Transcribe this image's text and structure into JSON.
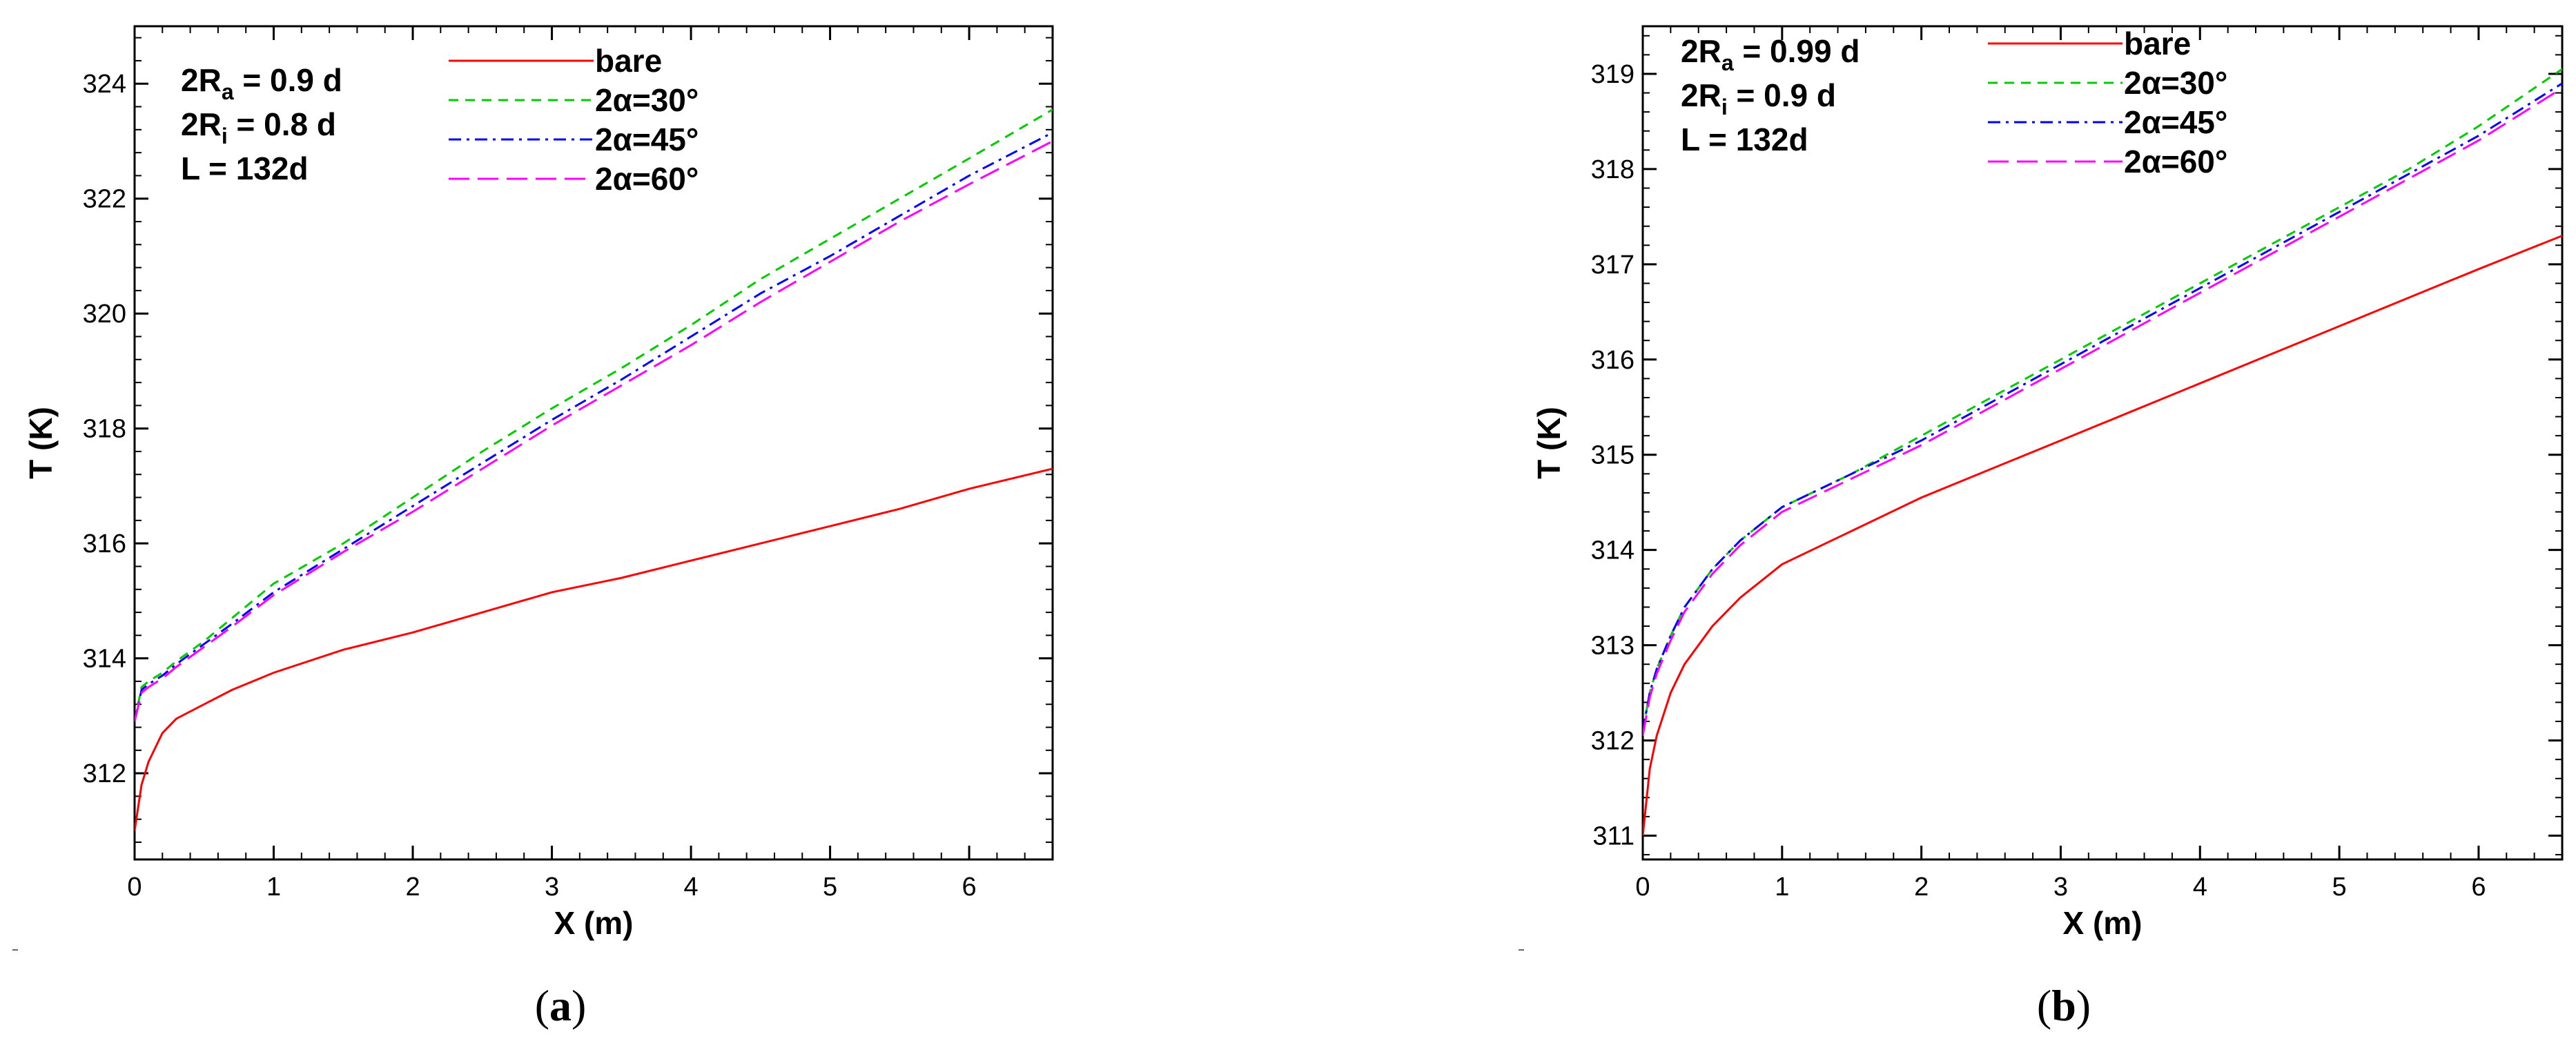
{
  "chart_data": [
    {
      "type": "line",
      "panel_label": {
        "open": "(",
        "letter": "a",
        "close": ")"
      },
      "xlabel": "X (m)",
      "ylabel": "T (K)",
      "xlim": [
        0,
        6.6
      ],
      "ylim": [
        310.5,
        325.0
      ],
      "x_ticks": [
        0,
        1,
        2,
        3,
        4,
        5,
        6
      ],
      "y_ticks": [
        312,
        314,
        316,
        318,
        320,
        322,
        324
      ],
      "grid": false,
      "legend_position": "top-center",
      "params": [
        {
          "main": "2R",
          "sub": "a",
          "rest": " = 0.9 d"
        },
        {
          "main": "2R",
          "sub": "i",
          "rest": "  = 0.8 d"
        },
        {
          "main": "L",
          "sub": "",
          "rest": "     = 132d"
        }
      ],
      "series": [
        {
          "name": "bare",
          "color": "#ff0000",
          "dash": "solid",
          "x": [
            0,
            0.05,
            0.1,
            0.2,
            0.3,
            0.5,
            0.7,
            1.0,
            1.5,
            2.0,
            2.5,
            3.0,
            3.5,
            4.0,
            4.5,
            5.0,
            5.5,
            6.0,
            6.6
          ],
          "y": [
            311.0,
            311.8,
            312.2,
            312.7,
            312.95,
            313.2,
            313.45,
            313.75,
            314.15,
            314.45,
            314.8,
            315.15,
            315.4,
            315.7,
            316.0,
            316.3,
            316.6,
            316.95,
            317.3
          ]
        },
        {
          "name": "2α=30°",
          "color": "#00cc00",
          "dash": "dashed",
          "x": [
            0,
            0.05,
            0.1,
            0.2,
            0.3,
            0.5,
            0.7,
            1.0,
            1.5,
            2.0,
            2.5,
            3.0,
            3.5,
            4.0,
            4.5,
            5.0,
            5.5,
            6.0,
            6.6
          ],
          "y": [
            312.9,
            313.5,
            313.6,
            313.75,
            313.95,
            314.3,
            314.7,
            315.3,
            316.0,
            316.8,
            317.6,
            318.35,
            319.05,
            319.8,
            320.6,
            321.3,
            322.0,
            322.7,
            323.55
          ]
        },
        {
          "name": "2α=45°",
          "color": "#0000ff",
          "dash": "dashdot",
          "x": [
            0,
            0.05,
            0.1,
            0.2,
            0.3,
            0.5,
            0.7,
            1.0,
            1.5,
            2.0,
            2.5,
            3.0,
            3.5,
            4.0,
            4.5,
            5.0,
            5.5,
            6.0,
            6.6
          ],
          "y": [
            312.9,
            313.45,
            313.55,
            313.7,
            313.9,
            314.25,
            314.6,
            315.15,
            315.9,
            316.65,
            317.4,
            318.15,
            318.85,
            319.6,
            320.35,
            321.0,
            321.7,
            322.4,
            323.15
          ]
        },
        {
          "name": "2α=60°",
          "color": "#ff00ff",
          "dash": "longdash",
          "x": [
            0,
            0.05,
            0.1,
            0.2,
            0.3,
            0.5,
            0.7,
            1.0,
            1.5,
            2.0,
            2.5,
            3.0,
            3.5,
            4.0,
            4.5,
            5.0,
            5.5,
            6.0,
            6.6
          ],
          "y": [
            312.9,
            313.4,
            313.5,
            313.65,
            313.85,
            314.2,
            314.55,
            315.1,
            315.85,
            316.55,
            317.3,
            318.05,
            318.75,
            319.45,
            320.2,
            320.9,
            321.6,
            322.25,
            323.0
          ]
        }
      ]
    },
    {
      "type": "line",
      "panel_label": {
        "open": "(",
        "letter": "b",
        "close": ")"
      },
      "xlabel": "X (m)",
      "ylabel": "T (K)",
      "xlim": [
        0,
        6.6
      ],
      "ylim": [
        310.75,
        319.5
      ],
      "x_ticks": [
        0,
        1,
        2,
        3,
        4,
        5,
        6
      ],
      "y_ticks": [
        311,
        312,
        313,
        314,
        315,
        316,
        317,
        318,
        319
      ],
      "grid": false,
      "legend_position": "top-center",
      "params": [
        {
          "main": "2R",
          "sub": "a",
          "rest": " = 0.99 d"
        },
        {
          "main": "2R",
          "sub": "i",
          "rest": " = 0.9 d"
        },
        {
          "main": "L",
          "sub": "",
          "rest": "     = 132d"
        }
      ],
      "series": [
        {
          "name": "bare",
          "color": "#ff0000",
          "dash": "solid",
          "x": [
            0,
            0.05,
            0.1,
            0.2,
            0.3,
            0.5,
            0.7,
            1.0,
            1.5,
            2.0,
            2.5,
            3.0,
            3.5,
            4.0,
            4.5,
            5.0,
            5.5,
            6.0,
            6.6
          ],
          "y": [
            311.0,
            311.7,
            312.05,
            312.5,
            312.8,
            313.2,
            313.5,
            313.85,
            314.2,
            314.55,
            314.85,
            315.15,
            315.45,
            315.75,
            316.05,
            316.35,
            316.65,
            316.95,
            317.3
          ]
        },
        {
          "name": "2α=30°",
          "color": "#00cc00",
          "dash": "dashed",
          "x": [
            0,
            0.05,
            0.1,
            0.2,
            0.3,
            0.5,
            0.7,
            1.0,
            1.5,
            2.0,
            2.5,
            3.0,
            3.5,
            4.0,
            4.5,
            5.0,
            5.5,
            6.0,
            6.6
          ],
          "y": [
            312.1,
            312.5,
            312.75,
            313.1,
            313.4,
            313.8,
            314.1,
            314.45,
            314.8,
            315.2,
            315.6,
            316.0,
            316.4,
            316.8,
            317.2,
            317.6,
            318.0,
            318.45,
            319.05
          ]
        },
        {
          "name": "2α=45°",
          "color": "#0000ff",
          "dash": "dashdot",
          "x": [
            0,
            0.05,
            0.1,
            0.2,
            0.3,
            0.5,
            0.7,
            1.0,
            1.5,
            2.0,
            2.5,
            3.0,
            3.5,
            4.0,
            4.5,
            5.0,
            5.5,
            6.0,
            6.6
          ],
          "y": [
            312.1,
            312.5,
            312.75,
            313.1,
            313.4,
            313.8,
            314.1,
            314.45,
            314.8,
            315.15,
            315.55,
            315.95,
            316.35,
            316.75,
            317.15,
            317.55,
            317.95,
            318.35,
            318.9
          ]
        },
        {
          "name": "2α=60°",
          "color": "#ff00ff",
          "dash": "longdash",
          "x": [
            0,
            0.05,
            0.1,
            0.2,
            0.3,
            0.5,
            0.7,
            1.0,
            1.5,
            2.0,
            2.5,
            3.0,
            3.5,
            4.0,
            4.5,
            5.0,
            5.5,
            6.0,
            6.6
          ],
          "y": [
            312.05,
            312.45,
            312.7,
            313.05,
            313.35,
            313.75,
            314.05,
            314.4,
            314.75,
            315.1,
            315.5,
            315.9,
            316.3,
            316.7,
            317.1,
            317.5,
            317.9,
            318.3,
            318.85
          ]
        }
      ]
    }
  ]
}
